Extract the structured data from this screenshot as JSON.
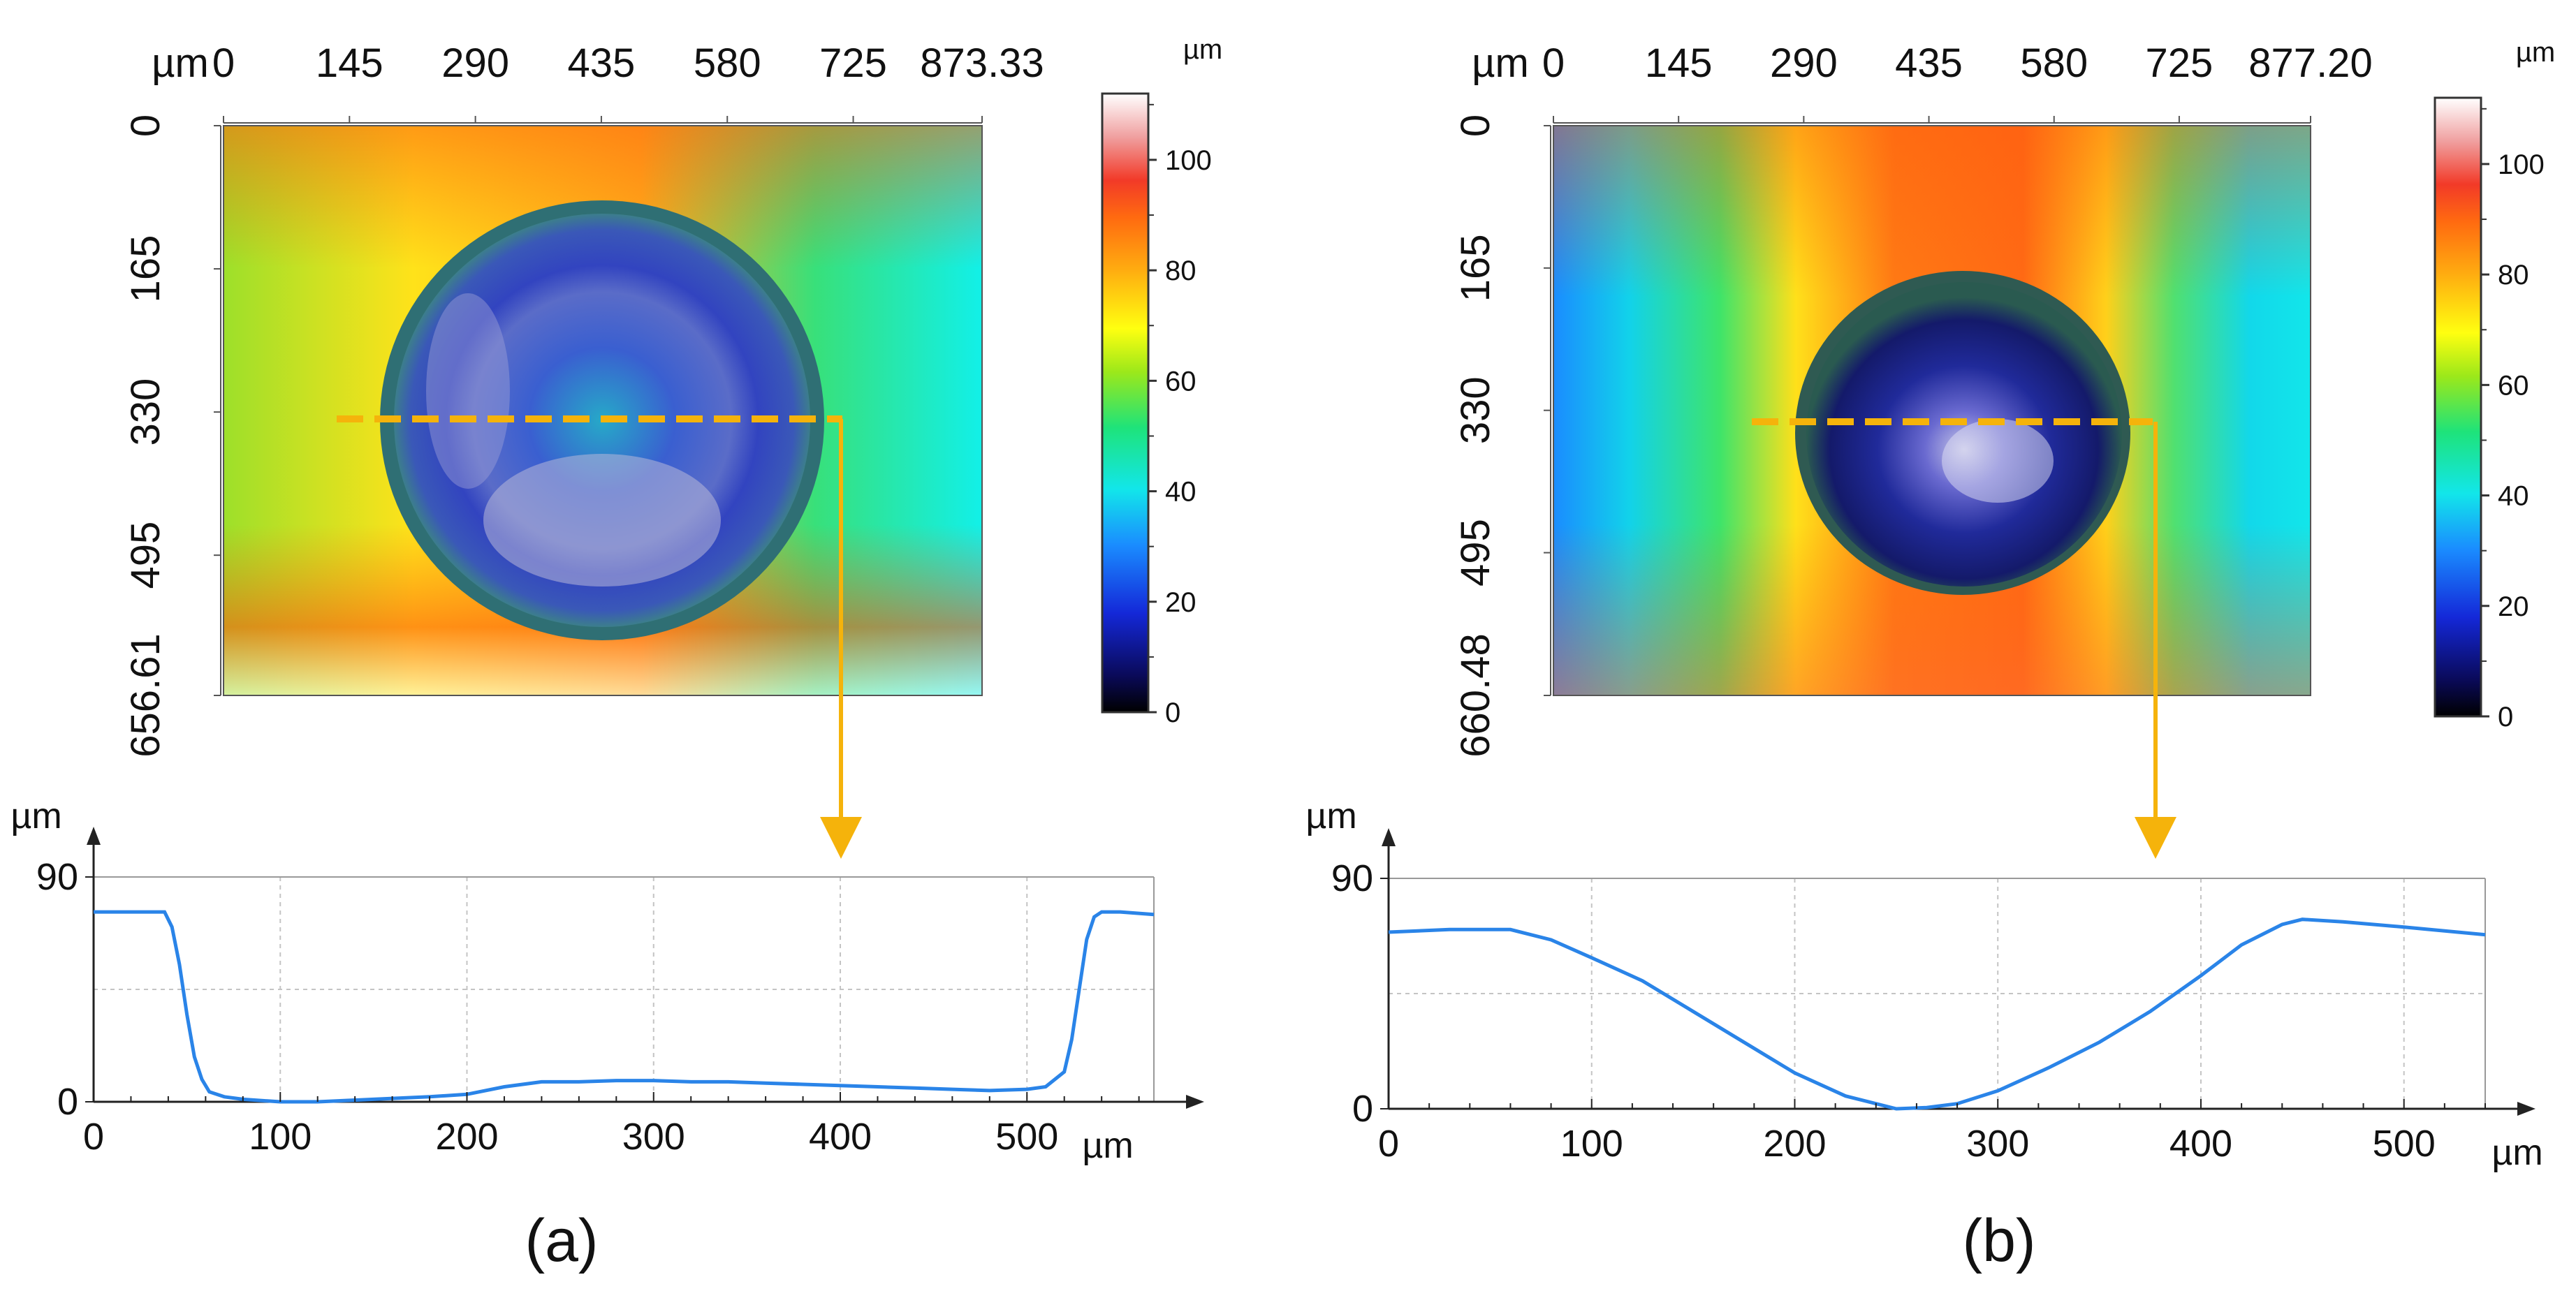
{
  "panels": [
    {
      "caption": "(a)",
      "map": {
        "unit": "µm",
        "x_ticks": [
          "0",
          "145",
          "290",
          "435",
          "580",
          "725",
          "873.33"
        ],
        "y_ticks": [
          "0",
          "165",
          "330",
          "495",
          "656.61"
        ],
        "x_max": 873.33,
        "y_max": 656.61
      },
      "colorbar": {
        "unit": "µm",
        "ticks": [
          "0",
          "20",
          "40",
          "60",
          "80",
          "100"
        ],
        "max": 112
      },
      "pit_shape": "circular",
      "profile_unit_y": "µm",
      "profile_unit_x": "µm"
    },
    {
      "caption": "(b)",
      "map": {
        "unit": "µm",
        "x_ticks": [
          "0",
          "145",
          "290",
          "435",
          "580",
          "725",
          "877.20"
        ],
        "y_ticks": [
          "0",
          "165",
          "330",
          "495",
          "660.48"
        ],
        "x_max": 877.2,
        "y_max": 660.48
      },
      "colorbar": {
        "unit": "µm",
        "ticks": [
          "0",
          "20",
          "40",
          "60",
          "80",
          "100"
        ],
        "max": 112
      },
      "pit_shape": "circular",
      "profile_unit_y": "µm",
      "profile_unit_x": "µm"
    }
  ],
  "chart_data": [
    {
      "type": "line",
      "panel": "(a)",
      "xlabel": "µm",
      "ylabel": "µm",
      "xlim": [
        0,
        568
      ],
      "ylim": [
        0,
        90
      ],
      "x_ticks": [
        0,
        100,
        200,
        300,
        400,
        500
      ],
      "y_ticks": [
        0,
        90
      ],
      "grid": true,
      "series": [
        {
          "color": "#2a84e8",
          "x": [
            0,
            20,
            38,
            42,
            46,
            50,
            54,
            58,
            62,
            70,
            80,
            100,
            120,
            150,
            180,
            200,
            220,
            240,
            260,
            280,
            300,
            320,
            340,
            360,
            380,
            400,
            420,
            440,
            460,
            480,
            500,
            510,
            520,
            524,
            528,
            532,
            536,
            540,
            550,
            568
          ],
          "y": [
            76,
            76,
            76,
            70,
            55,
            35,
            18,
            9,
            4,
            2,
            1,
            0,
            0,
            1,
            2,
            3,
            6,
            8,
            8,
            8.5,
            8.5,
            8,
            8,
            7.5,
            7,
            6.5,
            6,
            5.5,
            5,
            4.5,
            5,
            6,
            12,
            25,
            45,
            65,
            74,
            76,
            76,
            75
          ]
        }
      ]
    },
    {
      "type": "line",
      "panel": "(b)",
      "xlabel": "µm",
      "ylabel": "µm",
      "xlim": [
        0,
        540
      ],
      "ylim": [
        0,
        90
      ],
      "x_ticks": [
        0,
        100,
        200,
        300,
        400,
        500
      ],
      "y_ticks": [
        0,
        90
      ],
      "grid": true,
      "series": [
        {
          "color": "#2a84e8",
          "x": [
            0,
            30,
            60,
            80,
            100,
            125,
            150,
            175,
            200,
            225,
            250,
            265,
            280,
            300,
            325,
            350,
            375,
            400,
            420,
            440,
            450,
            470,
            500,
            540
          ],
          "y": [
            69,
            70,
            70,
            66,
            59,
            50,
            38,
            26,
            14,
            5,
            0,
            0.5,
            2,
            7,
            16,
            26,
            38,
            52,
            64,
            72,
            74,
            73,
            71,
            68
          ]
        }
      ]
    }
  ]
}
